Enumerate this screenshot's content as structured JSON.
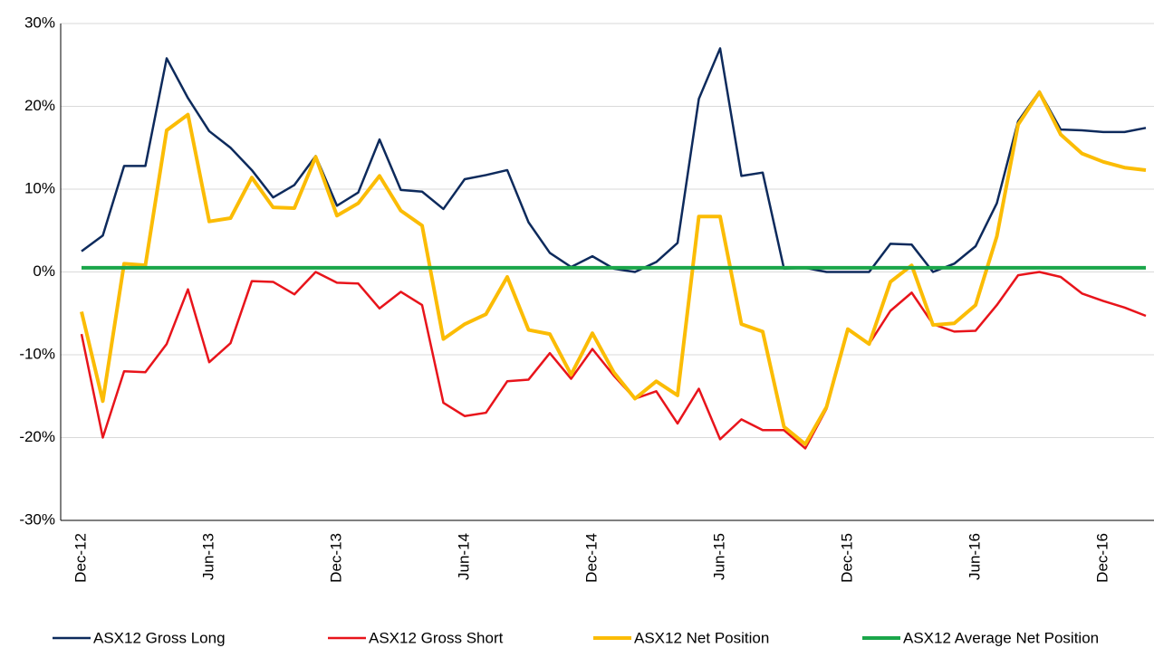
{
  "chart_data": {
    "type": "line",
    "categories": [
      "Dec-12",
      null,
      null,
      null,
      null,
      null,
      "Jun-13",
      null,
      null,
      null,
      null,
      null,
      "Dec-13",
      null,
      null,
      null,
      null,
      null,
      "Jun-14",
      null,
      null,
      null,
      null,
      null,
      "Dec-14",
      null,
      null,
      null,
      null,
      null,
      "Jun-15",
      null,
      null,
      null,
      null,
      null,
      "Dec-15",
      null,
      null,
      null,
      null,
      null,
      "Jun-16",
      null,
      null,
      null,
      null,
      null,
      "Dec-16",
      null,
      null
    ],
    "series": [
      {
        "name": "ASX12 Gross Long",
        "color": "#0d2a5c",
        "width": 2.5,
        "values": [
          2.5,
          4.4,
          12.8,
          12.8,
          25.8,
          21,
          17,
          15,
          12.3,
          9,
          10.5,
          14,
          8,
          9.6,
          16,
          9.9,
          9.7,
          7.6,
          11.2,
          11.7,
          12.3,
          6,
          2.3,
          0.6,
          1.9,
          0.4,
          0,
          1.2,
          3.5,
          20.9,
          27,
          11.6,
          12,
          0.4,
          0.5,
          0,
          0,
          0,
          3.4,
          3.3,
          0,
          1,
          3.1,
          8.3,
          18.2,
          21.8,
          17.2,
          17.1,
          16.9,
          16.9,
          17.4
        ]
      },
      {
        "name": "ASX12 Gross Short",
        "color": "#e8141b",
        "width": 2.5,
        "values": [
          -7.5,
          -20,
          -12,
          -12.1,
          -8.7,
          -2.1,
          -10.9,
          -8.6,
          -1.1,
          -1.2,
          -2.7,
          0,
          -1.3,
          -1.4,
          -4.4,
          -2.4,
          -4,
          -15.8,
          -17.4,
          -17,
          -13.2,
          -13,
          -9.8,
          -12.9,
          -9.3,
          -12.5,
          -15.3,
          -14.4,
          -18.3,
          -14.1,
          -20.2,
          -17.8,
          -19.1,
          -19.1,
          -21.3,
          -16.5,
          -6.9,
          -8.7,
          -4.7,
          -2.5,
          -6.3,
          -7.2,
          -7.1,
          -4,
          -0.4,
          0,
          -0.6,
          -2.6,
          -3.5,
          -4.3,
          -5.3
        ]
      },
      {
        "name": "ASX12 Net Position",
        "color": "#fbbc05",
        "width": 4,
        "values": [
          -4.8,
          -15.6,
          1,
          0.8,
          17.1,
          19,
          6.1,
          6.5,
          11.4,
          7.8,
          7.7,
          13.9,
          6.8,
          8.3,
          11.6,
          7.4,
          5.6,
          -8.1,
          -6.3,
          -5.1,
          -0.6,
          -7,
          -7.5,
          -12.4,
          -7.4,
          -12.1,
          -15.3,
          -13.2,
          -14.9,
          6.7,
          6.7,
          -6.3,
          -7.2,
          -18.7,
          -20.8,
          -16.3,
          -6.9,
          -8.7,
          -1.2,
          0.8,
          -6.4,
          -6.2,
          -4,
          4.3,
          17.8,
          21.7,
          16.6,
          14.3,
          13.3,
          12.6,
          12.3
        ]
      },
      {
        "name": "ASX12 Average Net Position",
        "color": "#1aa64a",
        "width": 4,
        "values": [
          0.5,
          0.5,
          0.5,
          0.5,
          0.5,
          0.5,
          0.5,
          0.5,
          0.5,
          0.5,
          0.5,
          0.5,
          0.5,
          0.5,
          0.5,
          0.5,
          0.5,
          0.5,
          0.5,
          0.5,
          0.5,
          0.5,
          0.5,
          0.5,
          0.5,
          0.5,
          0.5,
          0.5,
          0.5,
          0.5,
          0.5,
          0.5,
          0.5,
          0.5,
          0.5,
          0.5,
          0.5,
          0.5,
          0.5,
          0.5,
          0.5,
          0.5,
          0.5,
          0.5,
          0.5,
          0.5,
          0.5,
          0.5,
          0.5,
          0.5,
          0.5
        ]
      }
    ],
    "ylim": [
      -30,
      30
    ],
    "yticks": [
      {
        "value": -30,
        "label": "-30%"
      },
      {
        "value": -20,
        "label": "-20%"
      },
      {
        "value": -10,
        "label": "-10%"
      },
      {
        "value": 0,
        "label": "0%"
      },
      {
        "value": 10,
        "label": "10%"
      },
      {
        "value": 20,
        "label": "20%"
      },
      {
        "value": 30,
        "label": "30%"
      }
    ],
    "grid": true,
    "legend": "bottom"
  }
}
